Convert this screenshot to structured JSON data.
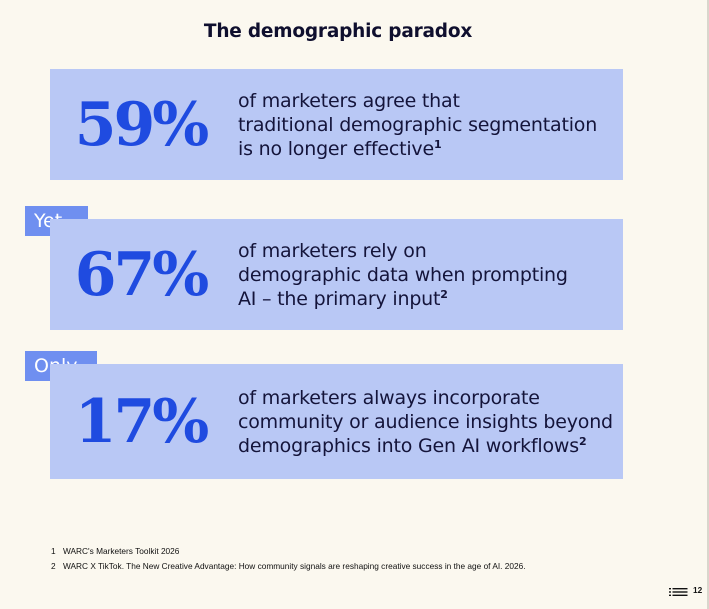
{
  "title": "The demographic paradox",
  "stats": [
    {
      "value": "59%",
      "lines": [
        "of marketers agree that",
        "traditional demographic segmentation",
        "is no longer effective"
      ],
      "footnote_ref": "1"
    },
    {
      "tag": "Yet",
      "value": "67%",
      "lines": [
        "of marketers rely on",
        "demographic data when prompting",
        "AI – the primary input"
      ],
      "footnote_ref": "2"
    },
    {
      "tag": "Only",
      "value": "17%",
      "lines": [
        "of marketers always incorporate",
        "community or audience insights beyond",
        "demographics into Gen AI workflows"
      ],
      "footnote_ref": "2"
    }
  ],
  "footnotes": [
    {
      "number": "1",
      "text": "WARC's Marketers Toolkit 2026"
    },
    {
      "number": "2",
      "text": "WARC X TikTok. The New Creative Advantage: How community signals are reshaping creative success in the age of AI. 2026."
    }
  ],
  "navigation": {
    "toc_icon": "list-icon",
    "page_number": "12"
  },
  "colors": {
    "background": "#fbf8ef",
    "card": "#b9c8f5",
    "stat_number": "#1f4be0",
    "tag": "#6f8ff0",
    "text": "#14143a"
  }
}
